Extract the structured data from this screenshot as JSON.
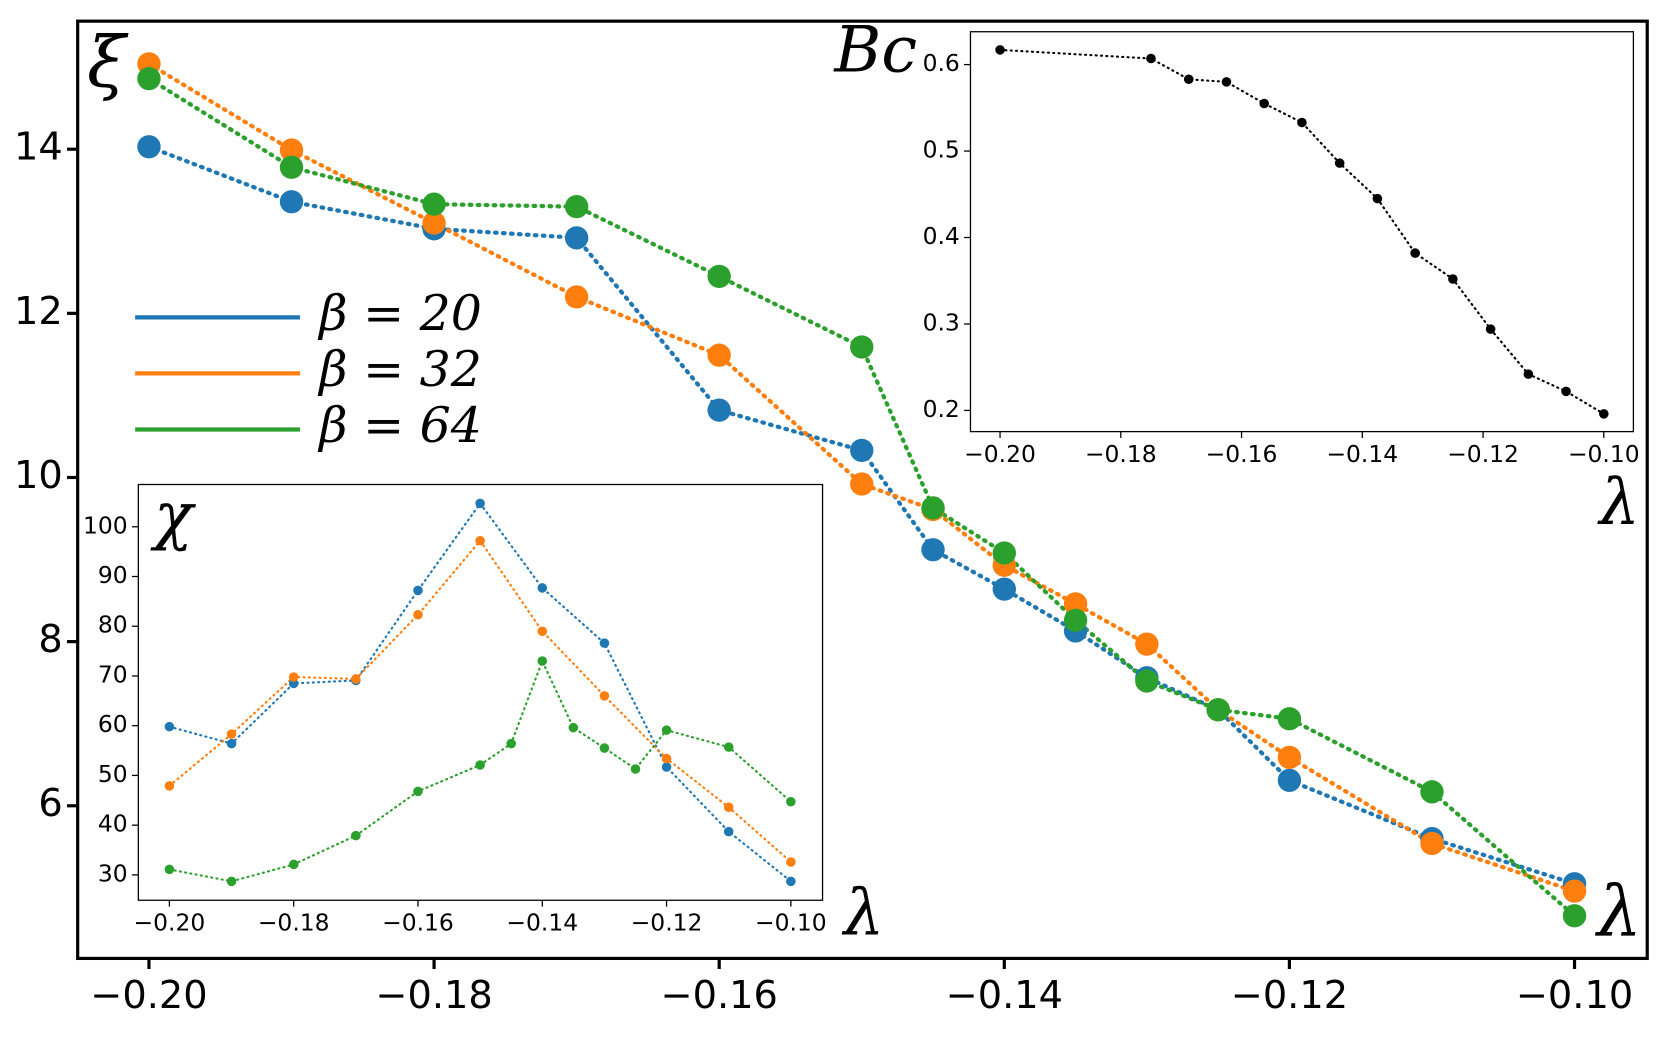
{
  "chart_data": [
    {
      "type": "line",
      "xlabel": "λ",
      "ylabel": "ξ",
      "xlim": [
        -0.205,
        -0.0949
      ],
      "ylim": [
        4.14,
        15.56
      ],
      "xticks": [
        {
          "value": -0.2,
          "label": "−0.20"
        },
        {
          "value": -0.18,
          "label": "−0.18"
        },
        {
          "value": -0.16,
          "label": "−0.16"
        },
        {
          "value": -0.14,
          "label": "−0.14"
        },
        {
          "value": -0.12,
          "label": "−0.12"
        },
        {
          "value": -0.1,
          "label": "−0.10"
        }
      ],
      "yticks": [
        6,
        8,
        10,
        12,
        14
      ],
      "grid": false,
      "legend_loc": "center left",
      "linestyle": "dotted",
      "series": [
        {
          "name": "β = 20",
          "color": "#1f77b4",
          "x": [
            -0.2,
            -0.19,
            -0.18,
            -0.17,
            -0.16,
            -0.15,
            -0.145,
            -0.14,
            -0.135,
            -0.13,
            -0.125,
            -0.12,
            -0.11,
            -0.1
          ],
          "values": [
            14.03,
            13.36,
            13.03,
            12.92,
            10.82,
            10.33,
            9.12,
            8.64,
            8.13,
            7.56,
            7.17,
            6.31,
            5.6,
            5.05
          ]
        },
        {
          "name": "β = 32",
          "color": "#ff7f0e",
          "x": [
            -0.2,
            -0.19,
            -0.18,
            -0.17,
            -0.16,
            -0.15,
            -0.145,
            -0.14,
            -0.135,
            -0.13,
            -0.125,
            -0.12,
            -0.11,
            -0.1
          ],
          "values": [
            15.04,
            13.99,
            13.1,
            12.2,
            11.49,
            9.92,
            9.61,
            8.93,
            8.46,
            7.97,
            7.17,
            6.59,
            5.54,
            4.96
          ]
        },
        {
          "name": "β = 64",
          "color": "#2ca02c",
          "x": [
            -0.2,
            -0.19,
            -0.18,
            -0.17,
            -0.16,
            -0.15,
            -0.145,
            -0.14,
            -0.135,
            -0.13,
            -0.125,
            -0.12,
            -0.11,
            -0.1
          ],
          "values": [
            14.86,
            13.78,
            13.33,
            13.3,
            12.45,
            11.59,
            9.63,
            9.08,
            8.26,
            7.52,
            7.17,
            7.06,
            6.17,
            4.66
          ]
        }
      ]
    },
    {
      "type": "line",
      "xlabel": "λ",
      "ylabel": "Bc",
      "xlim": [
        -0.2049,
        -0.0951
      ],
      "ylim": [
        0.1755,
        0.638
      ],
      "xticks": [
        {
          "value": -0.2,
          "label": "−0.20"
        },
        {
          "value": -0.18,
          "label": "−0.18"
        },
        {
          "value": -0.16,
          "label": "−0.16"
        },
        {
          "value": -0.14,
          "label": "−0.14"
        },
        {
          "value": -0.12,
          "label": "−0.12"
        },
        {
          "value": -0.1,
          "label": "−0.10"
        }
      ],
      "yticks": [
        0.2,
        0.3,
        0.4,
        0.5,
        0.6
      ],
      "grid": false,
      "linestyle": "dotted",
      "series": [
        {
          "color": "#000000",
          "x": [
            -0.2,
            -0.175,
            -0.16875,
            -0.1625,
            -0.15625,
            -0.15,
            -0.14375,
            -0.1375,
            -0.13125,
            -0.125,
            -0.11875,
            -0.1125,
            -0.10625,
            -0.1
          ],
          "values": [
            0.617,
            0.607,
            0.583,
            0.58,
            0.555,
            0.533,
            0.486,
            0.445,
            0.382,
            0.352,
            0.294,
            0.242,
            0.222,
            0.196
          ]
        }
      ]
    },
    {
      "type": "line",
      "xlabel": "λ",
      "ylabel": "χ",
      "xlim": [
        -0.205,
        -0.0949
      ],
      "ylim": [
        24.9,
        108.5
      ],
      "xticks": [
        {
          "value": -0.2,
          "label": "−0.20"
        },
        {
          "value": -0.18,
          "label": "−0.18"
        },
        {
          "value": -0.16,
          "label": "−0.16"
        },
        {
          "value": -0.14,
          "label": "−0.14"
        },
        {
          "value": -0.12,
          "label": "−0.12"
        },
        {
          "value": -0.1,
          "label": "−0.10"
        }
      ],
      "yticks": [
        30,
        40,
        50,
        60,
        70,
        80,
        90,
        100
      ],
      "grid": false,
      "linestyle": "dotted",
      "series": [
        {
          "color": "#1f77b4",
          "x": [
            -0.2,
            -0.19,
            -0.18,
            -0.17,
            -0.16,
            -0.15,
            -0.14,
            -0.13,
            -0.12,
            -0.11,
            -0.1
          ],
          "values": [
            59.8,
            56.4,
            68.5,
            69.1,
            87.2,
            104.7,
            87.7,
            76.6,
            51.7,
            38.7,
            28.7
          ]
        },
        {
          "color": "#ff7f0e",
          "x": [
            -0.2,
            -0.19,
            -0.18,
            -0.17,
            -0.16,
            -0.15,
            -0.14,
            -0.13,
            -0.12,
            -0.11,
            -0.1
          ],
          "values": [
            47.9,
            58.3,
            69.8,
            69.4,
            82.3,
            97.2,
            79.0,
            66.0,
            53.4,
            43.6,
            32.6
          ]
        },
        {
          "color": "#2ca02c",
          "x": [
            -0.2,
            -0.19,
            -0.18,
            -0.17,
            -0.16,
            -0.15,
            -0.145,
            -0.14,
            -0.135,
            -0.13,
            -0.125,
            -0.12,
            -0.11,
            -0.1
          ],
          "values": [
            31.1,
            28.7,
            32.1,
            37.9,
            46.8,
            52.1,
            56.4,
            73.0,
            59.6,
            55.5,
            51.3,
            59.1,
            55.7,
            44.7
          ]
        }
      ]
    }
  ]
}
